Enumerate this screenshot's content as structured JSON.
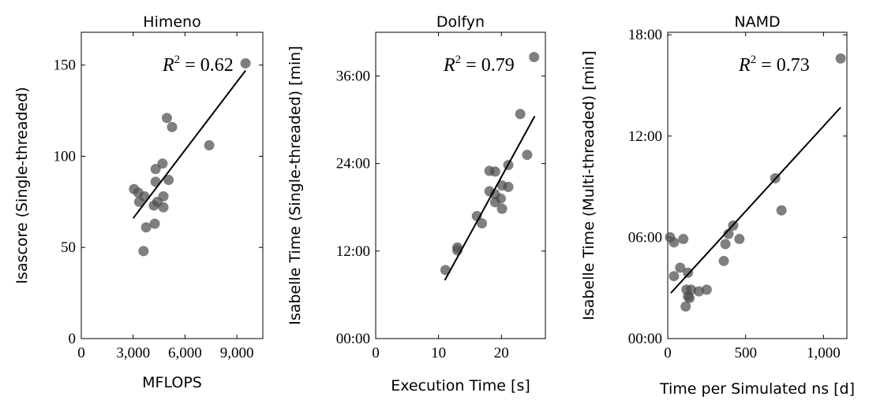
{
  "chart_data": [
    {
      "type": "scatter",
      "title": "Himeno",
      "xlabel": "MFLOPS",
      "ylabel": "Isascore (Single-threaded)",
      "xlim": [
        0,
        10500
      ],
      "ylim": [
        0,
        168
      ],
      "x_ticks": [
        0,
        3000,
        6000,
        9000
      ],
      "x_tick_labels": [
        "0",
        "3,000",
        "6,000",
        "9,000"
      ],
      "y_ticks": [
        0,
        50,
        100,
        150
      ],
      "y_tick_labels": [
        "0",
        "50",
        "100",
        "150"
      ],
      "annotation": {
        "text": "R",
        "sup": "2",
        "rest": " = 0.62"
      },
      "points": [
        {
          "x": 9500,
          "y": 151
        },
        {
          "x": 4950,
          "y": 121
        },
        {
          "x": 5250,
          "y": 116
        },
        {
          "x": 7400,
          "y": 106
        },
        {
          "x": 4700,
          "y": 96
        },
        {
          "x": 4300,
          "y": 93
        },
        {
          "x": 5050,
          "y": 87
        },
        {
          "x": 4300,
          "y": 86
        },
        {
          "x": 3050,
          "y": 82
        },
        {
          "x": 3300,
          "y": 80
        },
        {
          "x": 3650,
          "y": 78
        },
        {
          "x": 4750,
          "y": 78
        },
        {
          "x": 3350,
          "y": 75
        },
        {
          "x": 4400,
          "y": 75
        },
        {
          "x": 4200,
          "y": 73
        },
        {
          "x": 4750,
          "y": 72
        },
        {
          "x": 4250,
          "y": 63
        },
        {
          "x": 3750,
          "y": 61
        },
        {
          "x": 3600,
          "y": 48
        }
      ],
      "fit": {
        "x": [
          3000,
          9500
        ],
        "y": [
          66,
          147
        ]
      },
      "grid": false
    },
    {
      "type": "scatter",
      "title": "Dolfyn",
      "xlabel": "Execution Time [s]",
      "ylabel": "Isabelle Time (Single-threaded) [min]",
      "xlim": [
        0,
        27
      ],
      "ylim": [
        0,
        42
      ],
      "x_ticks": [
        0,
        10,
        20
      ],
      "x_tick_labels": [
        "0",
        "10",
        "20"
      ],
      "y_ticks": [
        0,
        12,
        24,
        36
      ],
      "y_tick_labels": [
        "00:00",
        "12:00",
        "24:00",
        "36:00"
      ],
      "annotation": {
        "text": "R",
        "sup": "2",
        "rest": " = 0.79"
      },
      "points": [
        {
          "x": 25.2,
          "y": 38.6
        },
        {
          "x": 23.0,
          "y": 30.8
        },
        {
          "x": 24.1,
          "y": 25.2
        },
        {
          "x": 21.1,
          "y": 23.8
        },
        {
          "x": 18.1,
          "y": 23.0
        },
        {
          "x": 19.0,
          "y": 22.9
        },
        {
          "x": 20.1,
          "y": 21.0
        },
        {
          "x": 21.1,
          "y": 20.8
        },
        {
          "x": 18.1,
          "y": 20.2
        },
        {
          "x": 19.0,
          "y": 19.8
        },
        {
          "x": 19.9,
          "y": 19.2
        },
        {
          "x": 19.0,
          "y": 18.7
        },
        {
          "x": 20.1,
          "y": 17.8
        },
        {
          "x": 16.1,
          "y": 16.8
        },
        {
          "x": 16.9,
          "y": 15.8
        },
        {
          "x": 13.0,
          "y": 12.5
        },
        {
          "x": 13.0,
          "y": 12.1
        },
        {
          "x": 11.1,
          "y": 9.4
        }
      ],
      "fit": {
        "x": [
          11,
          25.3
        ],
        "y": [
          8,
          30.5
        ]
      },
      "grid": false
    },
    {
      "type": "scatter",
      "title": "NAMD",
      "xlabel": "Time per Simulated ns [d]",
      "ylabel": "Isabelle Time (Multi-threaded) [min]",
      "xlim": [
        0,
        1150
      ],
      "ylim": [
        0,
        18.15
      ],
      "x_ticks": [
        0,
        500,
        1000
      ],
      "x_tick_labels": [
        "0",
        "500",
        "1,000"
      ],
      "y_ticks": [
        0,
        6,
        12,
        18
      ],
      "y_tick_labels": [
        "00:00",
        "06:00",
        "12:00",
        "18:00"
      ],
      "annotation": {
        "text": "R",
        "sup": "2",
        "rest": " = 0.73"
      },
      "points": [
        {
          "x": 1110,
          "y": 16.6
        },
        {
          "x": 690,
          "y": 9.5
        },
        {
          "x": 730,
          "y": 7.6
        },
        {
          "x": 420,
          "y": 6.7
        },
        {
          "x": 390,
          "y": 6.2
        },
        {
          "x": 460,
          "y": 5.9
        },
        {
          "x": 370,
          "y": 5.6
        },
        {
          "x": 15,
          "y": 6.0
        },
        {
          "x": 40,
          "y": 5.7
        },
        {
          "x": 100,
          "y": 5.9
        },
        {
          "x": 80,
          "y": 4.2
        },
        {
          "x": 130,
          "y": 3.9
        },
        {
          "x": 40,
          "y": 3.7
        },
        {
          "x": 360,
          "y": 4.6
        },
        {
          "x": 120,
          "y": 2.9
        },
        {
          "x": 200,
          "y": 2.8
        },
        {
          "x": 250,
          "y": 2.9
        },
        {
          "x": 150,
          "y": 2.9
        },
        {
          "x": 130,
          "y": 2.5
        },
        {
          "x": 140,
          "y": 2.4
        },
        {
          "x": 115,
          "y": 1.9
        }
      ],
      "fit": {
        "x": [
          20,
          1110
        ],
        "y": [
          2.7,
          13.7
        ]
      },
      "grid": false
    }
  ]
}
